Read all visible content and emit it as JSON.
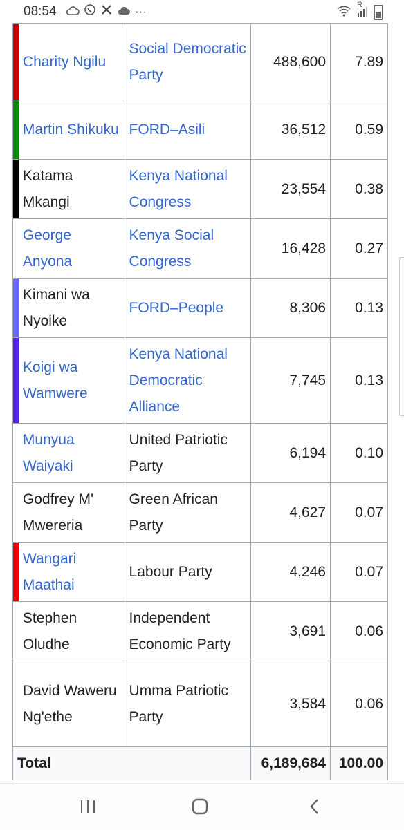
{
  "status_bar": {
    "time": "08:54",
    "icons": [
      "cloud-icon",
      "whatsapp-icon",
      "x-icon",
      "cloud-icon"
    ],
    "more": "···",
    "signal_text": "R"
  },
  "table": {
    "rows": [
      {
        "name": "Charity Ngilu",
        "name_link": true,
        "party": "Social Democratic Party",
        "party_link": true,
        "votes": "488,600",
        "pct": "7.89",
        "color": "#cc0000"
      },
      {
        "name": "Martin Shikuku",
        "name_link": true,
        "party": "FORD–Asili",
        "party_link": true,
        "votes": "36,512",
        "pct": "0.59",
        "color": "#0a8a0a"
      },
      {
        "name": "Katama Mkangi",
        "name_link": false,
        "party": "Kenya National Congress",
        "party_link": true,
        "votes": "23,554",
        "pct": "0.38",
        "color": "#000000"
      },
      {
        "name": "George Anyona",
        "name_link": true,
        "party": "Kenya Social Congress",
        "party_link": true,
        "votes": "16,428",
        "pct": "0.27",
        "color": "#ffffff"
      },
      {
        "name": "Kimani wa Nyoike",
        "name_link": false,
        "party": "FORD–People",
        "party_link": true,
        "votes": "8,306",
        "pct": "0.13",
        "color": "#6666ff"
      },
      {
        "name": "Koigi wa Wamwere",
        "name_link": true,
        "party": "Kenya National Democratic Alliance",
        "party_link": true,
        "votes": "7,745",
        "pct": "0.13",
        "color": "#5522ee"
      },
      {
        "name": "Munyua Waiyaki",
        "name_link": true,
        "party": "United Patriotic Party",
        "party_link": false,
        "votes": "6,194",
        "pct": "0.10",
        "color": "#ffffff"
      },
      {
        "name": "Godfrey M' Mwereria",
        "name_link": false,
        "party": "Green African Party",
        "party_link": false,
        "votes": "4,627",
        "pct": "0.07",
        "color": "#ffffff"
      },
      {
        "name": "Wangari Maathai",
        "name_link": true,
        "party": "Labour Party",
        "party_link": false,
        "votes": "4,246",
        "pct": "0.07",
        "color": "#ee0000"
      },
      {
        "name": "Stephen Oludhe",
        "name_link": false,
        "party": "Independent Economic Party",
        "party_link": false,
        "votes": "3,691",
        "pct": "0.06",
        "color": "#ffffff"
      },
      {
        "name": "David Waweru Ng'ethe",
        "name_link": false,
        "party": "Umma Patriotic Party",
        "party_link": false,
        "votes": "3,584",
        "pct": "0.06",
        "color": "#ffffff"
      }
    ],
    "total": {
      "label": "Total",
      "votes": "6,189,684",
      "pct": "100.00"
    }
  },
  "nav": {
    "recent": "recent-apps",
    "home": "home",
    "back": "back"
  }
}
